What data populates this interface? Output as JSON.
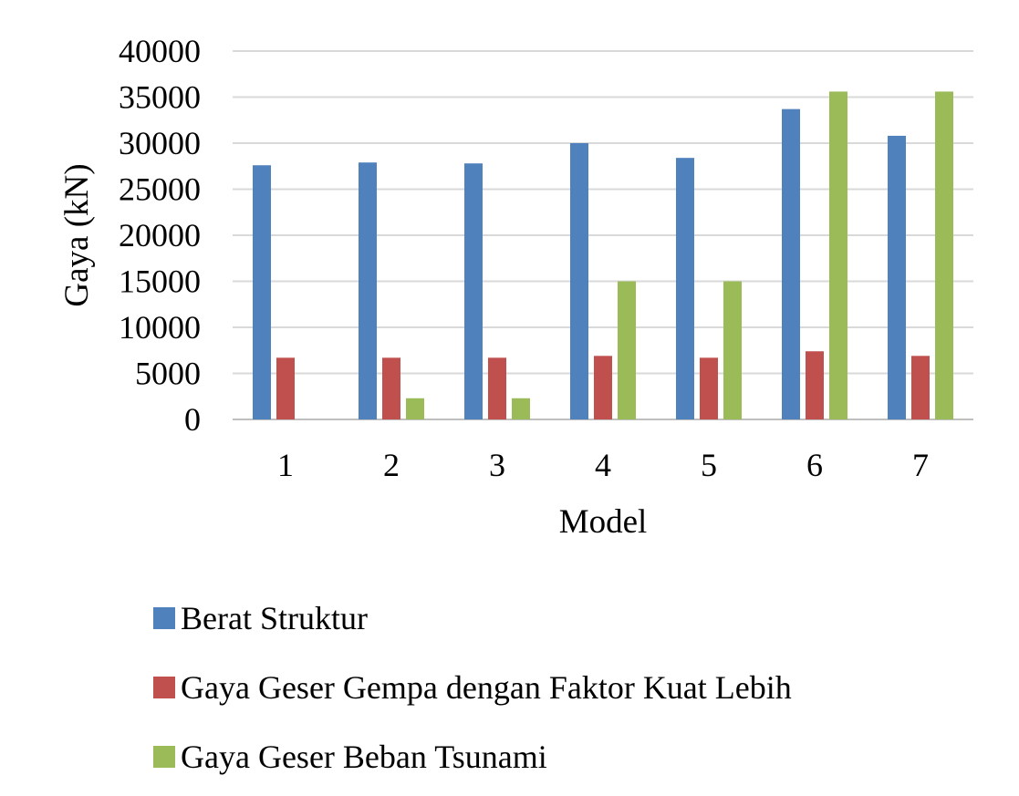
{
  "chart_data": {
    "type": "bar",
    "xlabel": "Model",
    "ylabel": "Gaya (kN)",
    "ylim": [
      0,
      40000
    ],
    "yticks": [
      "0",
      "5000",
      "10000",
      "15000",
      "20000",
      "25000",
      "30000",
      "35000",
      "40000"
    ],
    "grid": true,
    "legend_position": "bottom",
    "categories": [
      "1",
      "2",
      "3",
      "4",
      "5",
      "6",
      "7"
    ],
    "series": [
      {
        "name": "Berat Struktur",
        "color": "#4f81bd",
        "values": [
          27600,
          27900,
          27800,
          30000,
          28400,
          33700,
          30800
        ]
      },
      {
        "name": "Gaya Geser Gempa dengan Faktor Kuat Lebih",
        "color": "#c0504d",
        "values": [
          6700,
          6700,
          6700,
          6900,
          6700,
          7400,
          6900
        ]
      },
      {
        "name": "Gaya Geser Beban Tsunami",
        "color": "#9bbb59",
        "values": [
          0,
          2300,
          2300,
          15000,
          15000,
          35600,
          35600
        ]
      }
    ]
  }
}
